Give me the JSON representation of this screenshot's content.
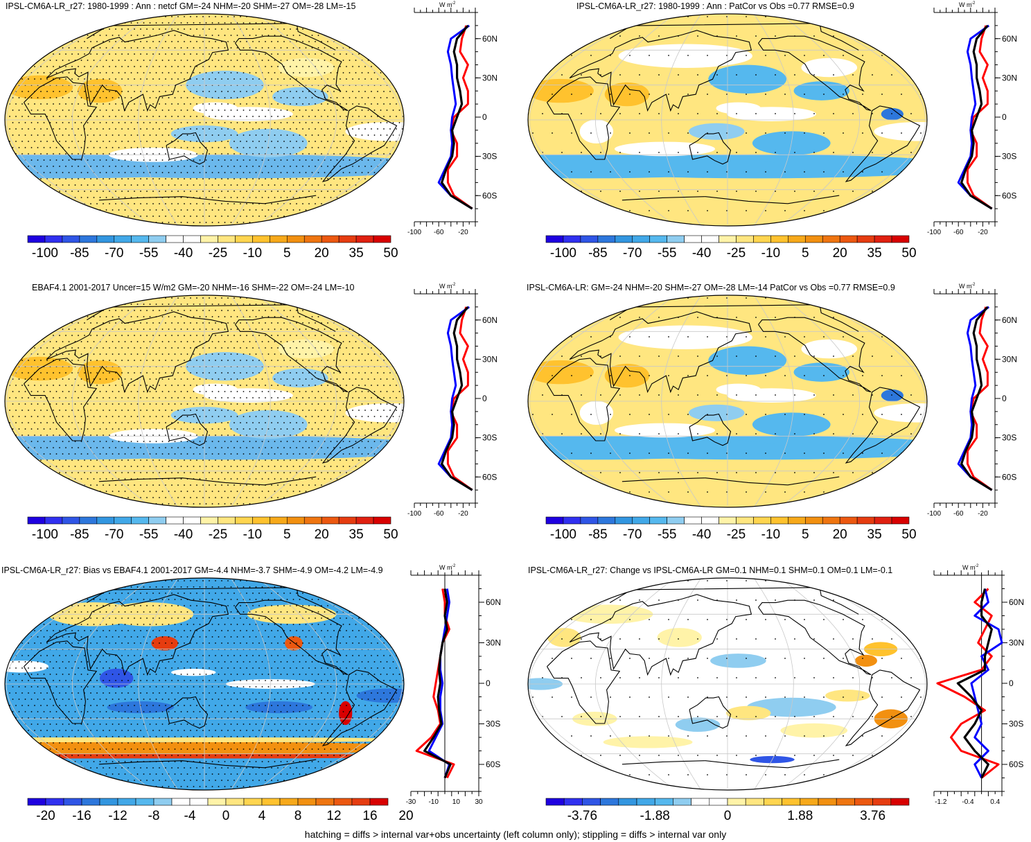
{
  "footnote": "hatching = diffs > internal var+obs uncertainty (left column only); stippling = diffs > internal var only",
  "colors": {
    "land_line": "#000000",
    "grid_line": "#c8c8c8",
    "series_red": "#ff0000",
    "series_blue": "#0000ff",
    "series_black": "#000000"
  },
  "cbar_main": {
    "colors": [
      "#1e00e0",
      "#3030f0",
      "#2f55e6",
      "#2d77dc",
      "#3296e0",
      "#41a8e8",
      "#55b8ee",
      "#8fcdf0",
      "#ffffff",
      "#ffffff",
      "#fff3a8",
      "#ffe680",
      "#ffd54f",
      "#ffc22e",
      "#f7a91a",
      "#f29010",
      "#ef7510",
      "#ec5810",
      "#e63c10",
      "#e02010",
      "#d80000"
    ],
    "labels": [
      "-100",
      "-85",
      "-70",
      "-55",
      "-40",
      "-25",
      "-10",
      "5",
      "20",
      "35",
      "50"
    ]
  },
  "cbar_bias": {
    "colors": [
      "#1e00e0",
      "#3030f0",
      "#2f55e6",
      "#2d77dc",
      "#3296e0",
      "#41a8e8",
      "#55b8ee",
      "#8fcdf0",
      "#ffffff",
      "#ffffff",
      "#fff3a8",
      "#ffe680",
      "#ffd54f",
      "#ffc22e",
      "#f7a91a",
      "#f29010",
      "#ef7510",
      "#ec5810",
      "#e63c10",
      "#d80000"
    ],
    "labels": [
      "-20",
      "-16",
      "-12",
      "-8",
      "-4",
      "0",
      "4",
      "8",
      "12",
      "16",
      "20"
    ]
  },
  "cbar_change": {
    "colors": [
      "#1e00e0",
      "#3030f0",
      "#2f55e6",
      "#2d77dc",
      "#3296e0",
      "#41a8e8",
      "#55b8ee",
      "#8fcdf0",
      "#ffffff",
      "#ffffff",
      "#fff3a8",
      "#ffe680",
      "#ffd54f",
      "#ffc22e",
      "#f7a91a",
      "#f29010",
      "#ef7510",
      "#ec5810",
      "#e63c10",
      "#d80000"
    ],
    "labels": [
      "-3.76",
      "-1.88",
      "0",
      "1.88",
      "3.76"
    ]
  },
  "panels": [
    {
      "title": "IPSL-CM6A-LR_r27: 1980-1999 : Ann : netcf GM=-24 NHM=-20 SHM=-27 OM=-28 LM=-15"
    },
    {
      "title": "IPSL-CM6A-LR_r27: 1980-1999 : Ann : PatCor vs Obs =0.77 RMSE=0.9"
    },
    {
      "title": "EBAF4.1 2001-2017 Uncer=15 W/m2 GM=-20 NHM=-16 SHM=-22 OM=-24 LM=-10"
    },
    {
      "title": "IPSL-CM6A-LR: GM=-24 NHM=-20 SHM=-27 OM=-28 LM=-14 PatCor vs Obs =0.77 RMSE=0.9"
    },
    {
      "title": "IPSL-CM6A-LR_r27: Bias vs EBAF4.1 2001-2017 GM=-4.4 NHM=-3.7 SHM=-4.9 OM=-4.2 LM=-4.9"
    },
    {
      "title": "IPSL-CM6A-LR_r27: Change vs IPSL-CM6A-LR GM=0.1 NHM=0.1 SHM=0.1 OM=0.1 LM=-0.1"
    }
  ],
  "zonal_axes": {
    "unit_label": "W m",
    "unit_sup": "-2",
    "lat_labels": [
      "60N",
      "30N",
      "0",
      "30S",
      "60S"
    ]
  },
  "chart_data": [
    {
      "type": "line",
      "panel": "top-left zonal mean (netcf)",
      "y": [
        70,
        60,
        50,
        40,
        30,
        20,
        10,
        0,
        -10,
        -20,
        -30,
        -40,
        -50,
        -60,
        -70
      ],
      "series": [
        {
          "color": "red",
          "values": [
            -15,
            -22,
            -25,
            -12,
            -20,
            -12,
            -12,
            -35,
            -40,
            -30,
            -30,
            -45,
            -45,
            -35,
            -5
          ]
        },
        {
          "color": "blue",
          "values": [
            -10,
            -40,
            -45,
            -40,
            -38,
            -35,
            -32,
            -38,
            -40,
            -38,
            -40,
            -50,
            -60,
            -40,
            -5
          ]
        },
        {
          "color": "black",
          "values": [
            -12,
            -30,
            -35,
            -30,
            -30,
            -25,
            -22,
            -30,
            -38,
            -35,
            -38,
            -48,
            -55,
            -40,
            -5
          ]
        }
      ],
      "xlim": [
        -100,
        0
      ],
      "xticks": [
        "-100",
        "-60",
        "-20"
      ]
    },
    {
      "type": "line",
      "panel": "top-right zonal mean",
      "y": [
        70,
        60,
        50,
        40,
        30,
        20,
        10,
        0,
        -10,
        -20,
        -30,
        -40,
        -50,
        -60,
        -70
      ],
      "series": [
        {
          "color": "red",
          "values": [
            -15,
            -22,
            -25,
            -12,
            -20,
            -12,
            -12,
            -35,
            -40,
            -30,
            -30,
            -45,
            -45,
            -35,
            -5
          ]
        },
        {
          "color": "blue",
          "values": [
            -10,
            -40,
            -45,
            -40,
            -38,
            -35,
            -32,
            -38,
            -40,
            -38,
            -40,
            -50,
            -60,
            -40,
            -5
          ]
        },
        {
          "color": "black",
          "values": [
            -12,
            -30,
            -35,
            -30,
            -30,
            -25,
            -22,
            -30,
            -38,
            -35,
            -38,
            -48,
            -55,
            -40,
            -5
          ]
        }
      ],
      "xlim": [
        -100,
        0
      ],
      "xticks": [
        "-100",
        "-60",
        "-20"
      ]
    },
    {
      "type": "line",
      "panel": "middle-left zonal mean (EBAF4.1)",
      "y": [
        70,
        60,
        50,
        40,
        30,
        20,
        10,
        0,
        -10,
        -20,
        -30,
        -40,
        -50,
        -60,
        -70
      ],
      "series": [
        {
          "color": "red",
          "values": [
            -15,
            -22,
            -25,
            -12,
            -20,
            -12,
            -12,
            -35,
            -40,
            -30,
            -30,
            -45,
            -45,
            -35,
            -5
          ]
        },
        {
          "color": "blue",
          "values": [
            -10,
            -40,
            -45,
            -40,
            -38,
            -35,
            -32,
            -38,
            -40,
            -38,
            -40,
            -50,
            -60,
            -40,
            -5
          ]
        },
        {
          "color": "black",
          "values": [
            -12,
            -30,
            -35,
            -30,
            -30,
            -25,
            -22,
            -30,
            -38,
            -35,
            -38,
            -48,
            -55,
            -40,
            -5
          ]
        }
      ],
      "xlim": [
        -100,
        0
      ],
      "xticks": [
        "-100",
        "-60",
        "-20"
      ]
    },
    {
      "type": "line",
      "panel": "middle-right zonal mean",
      "y": [
        70,
        60,
        50,
        40,
        30,
        20,
        10,
        0,
        -10,
        -20,
        -30,
        -40,
        -50,
        -60,
        -70
      ],
      "series": [
        {
          "color": "red",
          "values": [
            -15,
            -22,
            -25,
            -12,
            -20,
            -12,
            -12,
            -35,
            -40,
            -30,
            -30,
            -45,
            -45,
            -35,
            -5
          ]
        },
        {
          "color": "blue",
          "values": [
            -10,
            -40,
            -45,
            -40,
            -38,
            -35,
            -32,
            -38,
            -40,
            -38,
            -40,
            -50,
            -60,
            -40,
            -5
          ]
        },
        {
          "color": "black",
          "values": [
            -12,
            -30,
            -35,
            -30,
            -30,
            -25,
            -22,
            -30,
            -38,
            -35,
            -38,
            -48,
            -55,
            -40,
            -5
          ]
        }
      ],
      "xlim": [
        -100,
        0
      ],
      "xticks": [
        "-100",
        "-60",
        "-20"
      ]
    },
    {
      "type": "line",
      "panel": "bottom-left zonal mean (bias)",
      "y": [
        70,
        60,
        50,
        40,
        30,
        20,
        10,
        0,
        -10,
        -20,
        -30,
        -40,
        -50,
        -60,
        -70
      ],
      "series": [
        {
          "color": "red",
          "values": [
            -2,
            0,
            0,
            4,
            -2,
            -4,
            -6,
            -8,
            -10,
            -6,
            -4,
            -12,
            -25,
            8,
            2
          ]
        },
        {
          "color": "blue",
          "values": [
            2,
            4,
            2,
            0,
            -2,
            -4,
            -4,
            -2,
            -4,
            -4,
            -2,
            -8,
            -14,
            4,
            0
          ]
        },
        {
          "color": "black",
          "values": [
            0,
            2,
            0,
            2,
            -2,
            -4,
            -5,
            -4,
            -6,
            -5,
            -3,
            -10,
            -18,
            5,
            0
          ]
        }
      ],
      "xlim": [
        -30,
        30
      ],
      "xticks": [
        "-30",
        "-10",
        "10",
        "30"
      ]
    },
    {
      "type": "line",
      "panel": "bottom-right zonal mean (change)",
      "y": [
        70,
        60,
        50,
        40,
        30,
        20,
        10,
        0,
        -10,
        -20,
        -30,
        -40,
        -50,
        -60,
        -70
      ],
      "series": [
        {
          "color": "red",
          "values": [
            0.2,
            -0.2,
            0.3,
            0.1,
            -0.1,
            0.3,
            0.0,
            -1.3,
            -0.5,
            0.1,
            -0.6,
            -0.9,
            -0.6,
            0.5,
            0.0
          ]
        },
        {
          "color": "blue",
          "values": [
            0.1,
            0.2,
            -0.2,
            0.5,
            0.6,
            0.0,
            0.2,
            -0.3,
            -0.2,
            -0.1,
            0.0,
            -0.2,
            0.2,
            -0.2,
            0.0
          ]
        },
        {
          "color": "black",
          "values": [
            0.1,
            0.0,
            0.0,
            0.3,
            0.2,
            0.1,
            0.1,
            -0.7,
            -0.3,
            0.0,
            -0.2,
            -0.5,
            -0.2,
            0.2,
            0.0
          ]
        }
      ],
      "xlim": [
        -1.4,
        0.6
      ],
      "xticks": [
        "-1.2",
        "-0.4",
        "0.4"
      ]
    }
  ]
}
